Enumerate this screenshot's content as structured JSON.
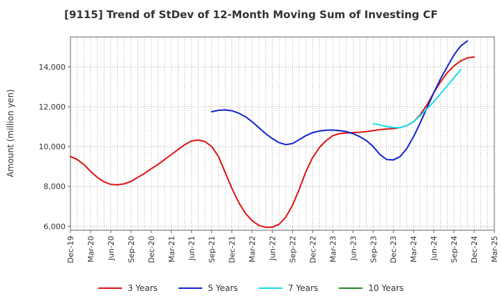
{
  "chart_data": {
    "type": "line",
    "title": "[9115]  Trend of StDev of 12-Month Moving Sum of Investing CF",
    "ylabel": "Amount (million yen)",
    "xlabel": "",
    "ylim": [
      5800,
      15500
    ],
    "yticks": [
      6000,
      8000,
      10000,
      12000,
      14000
    ],
    "ytick_labels": [
      "6,000",
      "8,000",
      "10,000",
      "12,000",
      "14,000"
    ],
    "xlim": [
      "2019-12",
      "2025-03"
    ],
    "xtick_labels": [
      "Dec-19",
      "Mar-20",
      "Jun-20",
      "Sep-20",
      "Dec-20",
      "Mar-21",
      "Jun-21",
      "Sep-21",
      "Dec-21",
      "Mar-22",
      "Jun-22",
      "Sep-22",
      "Dec-22",
      "Mar-23",
      "Jun-23",
      "Sep-23",
      "Dec-23",
      "Mar-24",
      "Jun-24",
      "Sep-24",
      "Dec-24",
      "Mar-25"
    ],
    "grid": true,
    "legend_position": "bottom",
    "series": [
      {
        "name": "3 Years",
        "color": "#dd1111",
        "start": "2019-12",
        "values": [
          9500,
          9350,
          9100,
          8750,
          8450,
          8230,
          8100,
          8080,
          8130,
          8250,
          8450,
          8650,
          8880,
          9100,
          9350,
          9600,
          9850,
          10100,
          10280,
          10330,
          10250,
          10000,
          9500,
          8700,
          7900,
          7200,
          6650,
          6280,
          6050,
          5950,
          5950,
          6100,
          6450,
          7050,
          7850,
          8750,
          9450,
          9950,
          10300,
          10550,
          10650,
          10680,
          10700,
          10720,
          10750,
          10800,
          10850,
          10880,
          10900,
          10950,
          11050,
          11250,
          11600,
          12100,
          12700,
          13250,
          13700,
          14050,
          14300,
          14450,
          14500
        ]
      },
      {
        "name": "5 Years",
        "color": "#1122cc",
        "start": "2021-09",
        "values": [
          11750,
          11820,
          11840,
          11800,
          11680,
          11500,
          11250,
          10950,
          10650,
          10400,
          10200,
          10100,
          10150,
          10350,
          10550,
          10700,
          10780,
          10820,
          10830,
          10800,
          10750,
          10650,
          10500,
          10300,
          10000,
          9600,
          9350,
          9330,
          9500,
          9900,
          10500,
          11200,
          11950,
          12700,
          13400,
          14000,
          14600,
          15050,
          15300
        ]
      },
      {
        "name": "7 Years",
        "color": "#11ddee",
        "start": "2023-09",
        "values": [
          11150,
          11080,
          11000,
          10950,
          10950,
          11050,
          11250,
          11550,
          11900,
          12250,
          12650,
          13050,
          13450,
          13850
        ]
      },
      {
        "name": "10 Years",
        "color": "#228822",
        "start": "2024-09",
        "values": []
      }
    ]
  }
}
